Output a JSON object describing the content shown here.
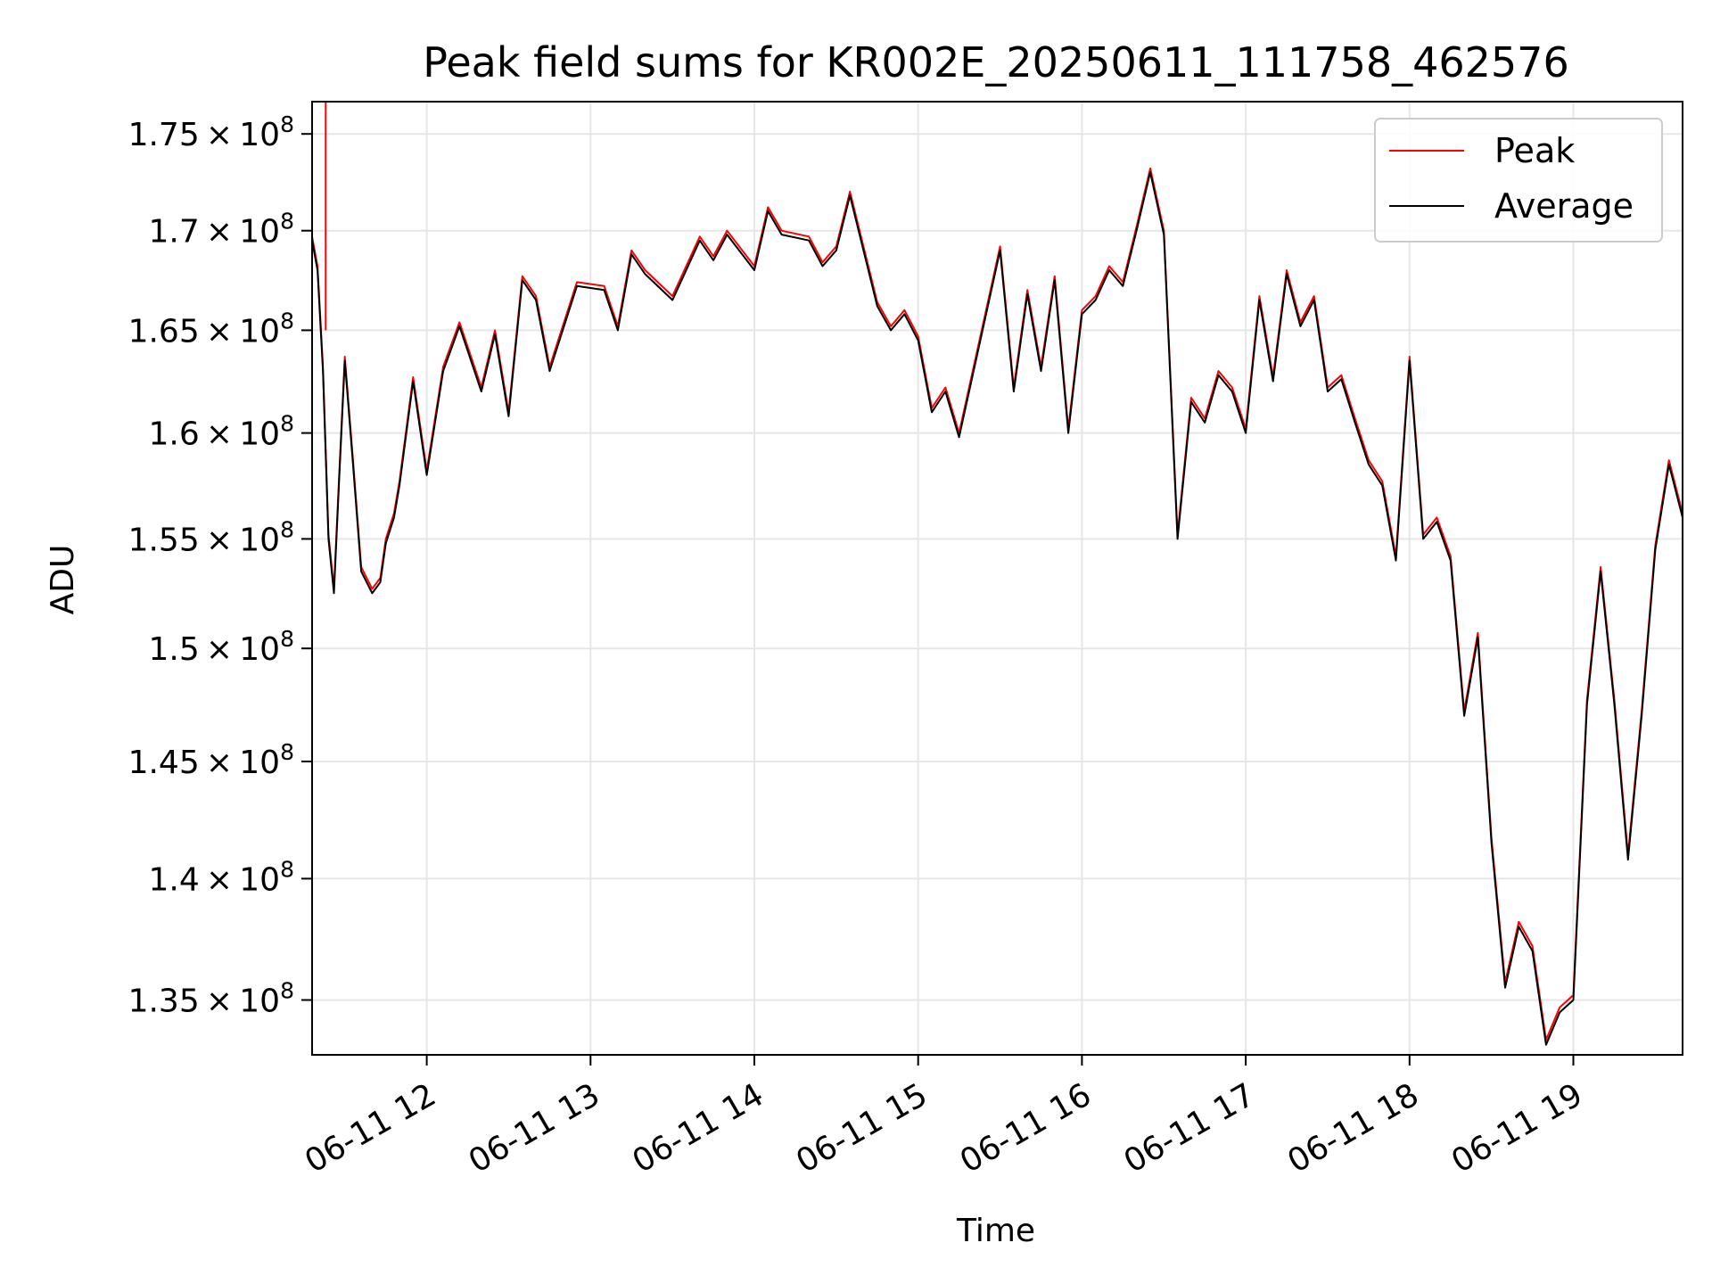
{
  "chart_data": {
    "type": "line",
    "title": "Peak field sums for KR002E_20250611_111758_462576",
    "xlabel": "Time",
    "ylabel": "ADU",
    "x_type": "datetime",
    "xlim": [
      "2025-06-11T11:18",
      "2025-06-11T19:40"
    ],
    "ylim": [
      132800000,
      176700000
    ],
    "y_scale": "log",
    "grid": true,
    "legend_position": "top-right",
    "x_ticks": [
      {
        "value": "2025-06-11T12:00",
        "label": "06-11 12"
      },
      {
        "value": "2025-06-11T13:00",
        "label": "06-11 13"
      },
      {
        "value": "2025-06-11T14:00",
        "label": "06-11 14"
      },
      {
        "value": "2025-06-11T15:00",
        "label": "06-11 15"
      },
      {
        "value": "2025-06-11T16:00",
        "label": "06-11 16"
      },
      {
        "value": "2025-06-11T17:00",
        "label": "06-11 17"
      },
      {
        "value": "2025-06-11T18:00",
        "label": "06-11 18"
      },
      {
        "value": "2025-06-11T19:00",
        "label": "06-11 19"
      }
    ],
    "y_ticks": [
      {
        "value": 175000000,
        "mantissa": "1.75",
        "label": "1.75 × 10^8"
      },
      {
        "value": 170000000,
        "mantissa": "1.7",
        "label": "1.7 × 10^8"
      },
      {
        "value": 165000000,
        "mantissa": "1.65",
        "label": "1.65 × 10^8"
      },
      {
        "value": 160000000,
        "mantissa": "1.6",
        "label": "1.6 × 10^8"
      },
      {
        "value": 155000000,
        "mantissa": "1.55",
        "label": "1.55 × 10^8"
      },
      {
        "value": 150000000,
        "mantissa": "1.5",
        "label": "1.5 × 10^8"
      },
      {
        "value": 145000000,
        "mantissa": "1.45",
        "label": "1.45 × 10^8"
      },
      {
        "value": 140000000,
        "mantissa": "1.4",
        "label": "1.4 × 10^8"
      },
      {
        "value": 135000000,
        "mantissa": "1.35",
        "label": "1.35 × 10^8"
      }
    ],
    "series": [
      {
        "name": "Peak",
        "color": "#ff0000"
      },
      {
        "name": "Average",
        "color": "#000000"
      }
    ],
    "x": [
      "2025-06-11T11:18",
      "2025-06-11T11:20",
      "2025-06-11T11:22",
      "2025-06-11T11:24",
      "2025-06-11T11:26",
      "2025-06-11T11:28",
      "2025-06-11T11:30",
      "2025-06-11T11:33",
      "2025-06-11T11:36",
      "2025-06-11T11:40",
      "2025-06-11T11:43",
      "2025-06-11T11:45",
      "2025-06-11T11:48",
      "2025-06-11T11:50",
      "2025-06-11T11:55",
      "2025-06-11T12:00",
      "2025-06-11T12:06",
      "2025-06-11T12:12",
      "2025-06-11T12:20",
      "2025-06-11T12:25",
      "2025-06-11T12:30",
      "2025-06-11T12:35",
      "2025-06-11T12:40",
      "2025-06-11T12:45",
      "2025-06-11T12:55",
      "2025-06-11T13:05",
      "2025-06-11T13:10",
      "2025-06-11T13:15",
      "2025-06-11T13:20",
      "2025-06-11T13:30",
      "2025-06-11T13:40",
      "2025-06-11T13:45",
      "2025-06-11T13:50",
      "2025-06-11T14:00",
      "2025-06-11T14:05",
      "2025-06-11T14:10",
      "2025-06-11T14:20",
      "2025-06-11T14:25",
      "2025-06-11T14:30",
      "2025-06-11T14:35",
      "2025-06-11T14:45",
      "2025-06-11T14:50",
      "2025-06-11T14:55",
      "2025-06-11T15:00",
      "2025-06-11T15:05",
      "2025-06-11T15:10",
      "2025-06-11T15:15",
      "2025-06-11T15:20",
      "2025-06-11T15:30",
      "2025-06-11T15:35",
      "2025-06-11T15:40",
      "2025-06-11T15:45",
      "2025-06-11T15:50",
      "2025-06-11T15:55",
      "2025-06-11T16:00",
      "2025-06-11T16:05",
      "2025-06-11T16:10",
      "2025-06-11T16:15",
      "2025-06-11T16:20",
      "2025-06-11T16:25",
      "2025-06-11T16:30",
      "2025-06-11T16:35",
      "2025-06-11T16:40",
      "2025-06-11T16:45",
      "2025-06-11T16:50",
      "2025-06-11T16:55",
      "2025-06-11T17:00",
      "2025-06-11T17:05",
      "2025-06-11T17:10",
      "2025-06-11T17:15",
      "2025-06-11T17:20",
      "2025-06-11T17:25",
      "2025-06-11T17:30",
      "2025-06-11T17:35",
      "2025-06-11T17:40",
      "2025-06-11T17:45",
      "2025-06-11T17:50",
      "2025-06-11T17:55",
      "2025-06-11T18:00",
      "2025-06-11T18:05",
      "2025-06-11T18:10",
      "2025-06-11T18:15",
      "2025-06-11T18:20",
      "2025-06-11T18:25",
      "2025-06-11T18:30",
      "2025-06-11T18:35",
      "2025-06-11T18:40",
      "2025-06-11T18:45",
      "2025-06-11T18:50",
      "2025-06-11T18:55",
      "2025-06-11T19:00",
      "2025-06-11T19:05",
      "2025-06-11T19:10",
      "2025-06-11T19:15",
      "2025-06-11T19:20",
      "2025-06-11T19:25",
      "2025-06-11T19:30",
      "2025-06-11T19:35",
      "2025-06-11T19:40"
    ],
    "y_average": [
      169500000,
      168000000,
      163000000,
      155000000,
      152500000,
      158000000,
      163500000,
      158500000,
      153500000,
      152500000,
      153000000,
      154800000,
      156000000,
      157500000,
      162500000,
      158000000,
      163000000,
      165200000,
      162000000,
      164800000,
      160800000,
      167500000,
      166500000,
      163000000,
      167200000,
      167000000,
      165000000,
      168800000,
      167800000,
      166500000,
      169500000,
      168500000,
      169800000,
      168000000,
      171000000,
      169800000,
      169500000,
      168200000,
      169000000,
      171800000,
      166200000,
      165000000,
      165800000,
      164500000,
      161000000,
      162000000,
      159800000,
      162800000,
      169000000,
      162000000,
      166800000,
      163000000,
      167500000,
      160000000,
      165800000,
      166500000,
      168000000,
      167200000,
      170000000,
      173000000,
      169800000,
      155000000,
      161500000,
      160500000,
      162800000,
      162000000,
      160000000,
      166500000,
      162500000,
      167800000,
      165200000,
      166500000,
      162000000,
      162600000,
      160500000,
      158500000,
      157500000,
      154000000,
      163500000,
      155000000,
      155800000,
      154000000,
      147000000,
      150500000,
      141500000,
      135500000,
      138000000,
      137000000,
      133200000,
      134500000,
      135000000,
      147500000,
      153500000,
      147500000,
      140800000,
      147000000,
      154500000,
      158500000,
      156000000
    ],
    "y_peak": [
      169700000,
      168200000,
      163200000,
      155200000,
      152700000,
      158200000,
      163700000,
      158700000,
      153700000,
      152700000,
      153200000,
      155000000,
      156200000,
      157700000,
      162700000,
      158200000,
      163200000,
      165400000,
      162200000,
      165000000,
      161000000,
      167700000,
      166700000,
      163200000,
      167400000,
      167200000,
      165200000,
      169000000,
      168000000,
      166700000,
      169700000,
      168700000,
      170000000,
      168200000,
      171200000,
      170000000,
      169700000,
      168400000,
      169200000,
      172000000,
      166400000,
      165200000,
      166000000,
      164700000,
      161200000,
      162200000,
      160000000,
      163000000,
      169200000,
      162200000,
      167000000,
      163200000,
      167700000,
      160200000,
      166000000,
      166700000,
      168200000,
      167400000,
      170200000,
      173200000,
      170000000,
      155200000,
      161700000,
      160700000,
      163000000,
      162200000,
      160200000,
      166700000,
      162700000,
      168000000,
      165400000,
      166700000,
      162200000,
      162800000,
      160700000,
      158700000,
      157700000,
      154200000,
      163700000,
      155200000,
      156000000,
      154200000,
      147200000,
      150700000,
      141700000,
      135700000,
      138200000,
      137200000,
      133400000,
      134700000,
      135200000,
      147700000,
      153700000,
      147700000,
      141000000,
      147200000,
      154700000,
      158700000,
      156200000
    ],
    "peak_spike": {
      "x": "2025-06-11T11:23",
      "y_top": 176700000,
      "y_bottom": 165000000
    }
  }
}
